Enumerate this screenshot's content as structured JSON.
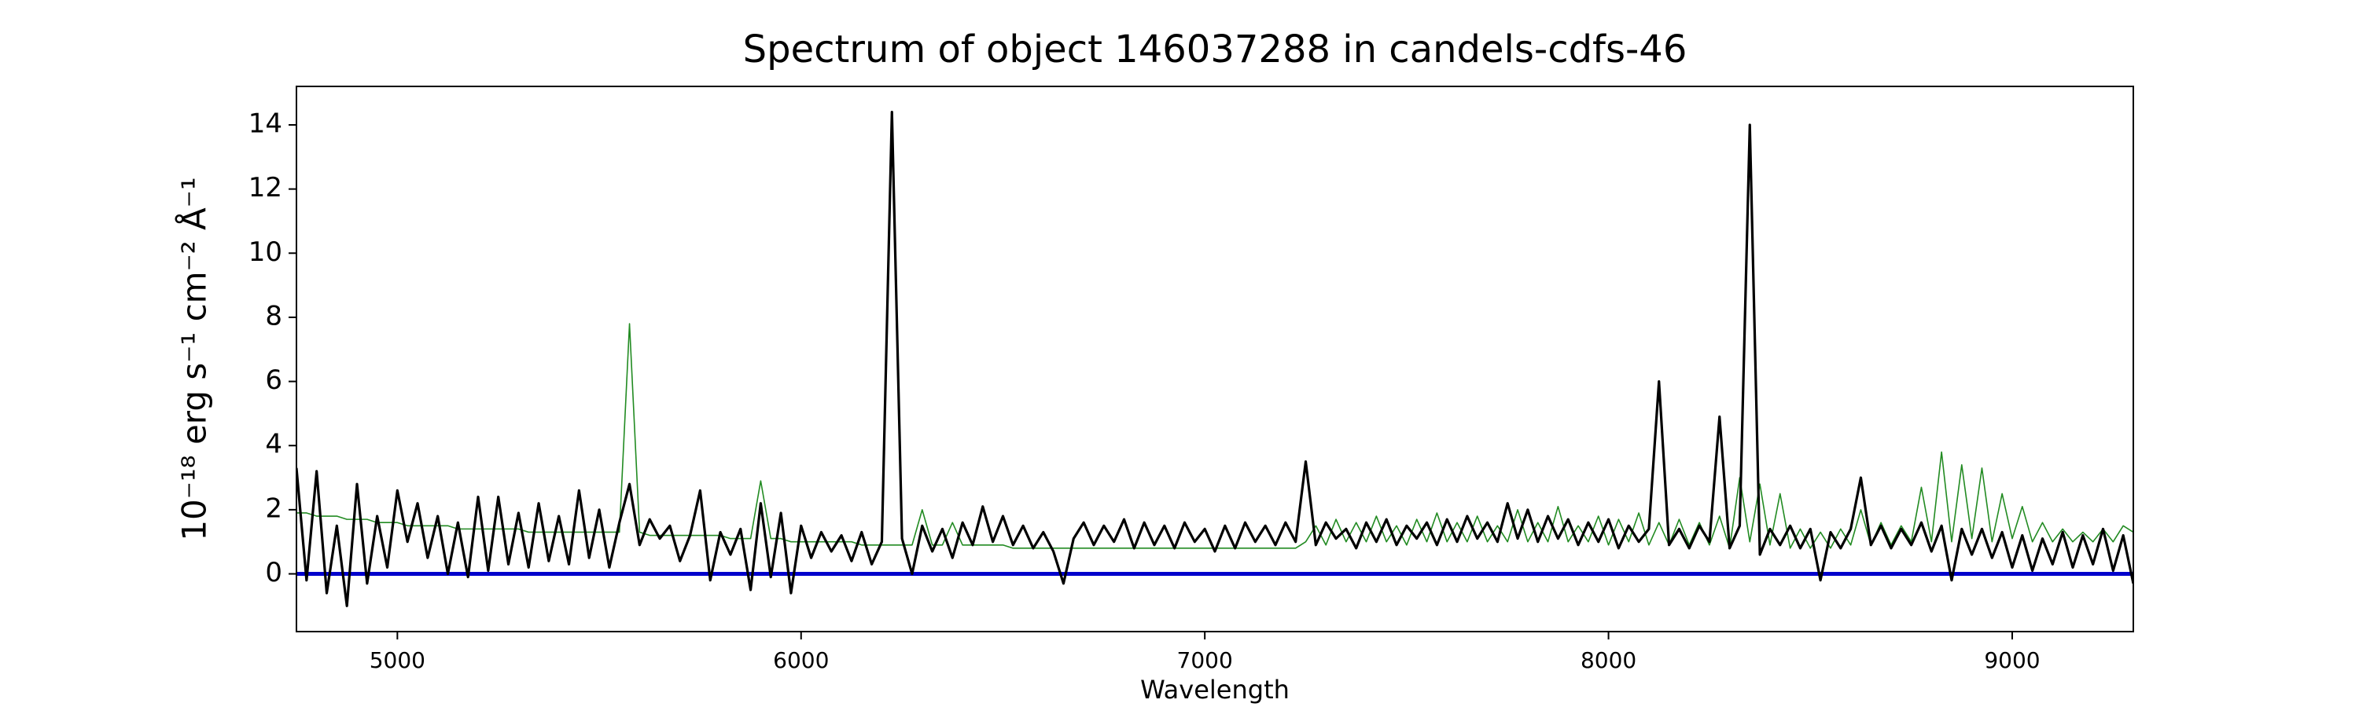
{
  "chart_data": {
    "type": "line",
    "title": "Spectrum of object 146037288 in candels-cdfs-46",
    "xlabel": "Wavelength",
    "ylabel": "10⁻¹⁸ erg s⁻¹ cm⁻² Å⁻¹",
    "xlim": [
      4750,
      9300
    ],
    "xticks": [
      5000,
      6000,
      7000,
      8000,
      9000
    ],
    "ylim": [
      -1.8,
      15.2
    ],
    "yticks": [
      0,
      2,
      4,
      6,
      8,
      10,
      12,
      14
    ],
    "hline": {
      "y": 0,
      "color": "#0000cc"
    },
    "x": [
      4750,
      4775,
      4800,
      4825,
      4850,
      4875,
      4900,
      4925,
      4950,
      4975,
      5000,
      5025,
      5050,
      5075,
      5100,
      5125,
      5150,
      5175,
      5200,
      5225,
      5250,
      5275,
      5300,
      5325,
      5350,
      5375,
      5400,
      5425,
      5450,
      5475,
      5500,
      5525,
      5550,
      5575,
      5600,
      5625,
      5650,
      5675,
      5700,
      5725,
      5750,
      5775,
      5800,
      5825,
      5850,
      5875,
      5900,
      5925,
      5950,
      5975,
      6000,
      6025,
      6050,
      6075,
      6100,
      6125,
      6150,
      6175,
      6200,
      6225,
      6250,
      6275,
      6300,
      6325,
      6350,
      6375,
      6400,
      6425,
      6450,
      6475,
      6500,
      6525,
      6550,
      6575,
      6600,
      6625,
      6650,
      6675,
      6700,
      6725,
      6750,
      6775,
      6800,
      6825,
      6850,
      6875,
      6900,
      6925,
      6950,
      6975,
      7000,
      7025,
      7050,
      7075,
      7100,
      7125,
      7150,
      7175,
      7200,
      7225,
      7250,
      7275,
      7300,
      7325,
      7350,
      7375,
      7400,
      7425,
      7450,
      7475,
      7500,
      7525,
      7550,
      7575,
      7600,
      7625,
      7650,
      7675,
      7700,
      7725,
      7750,
      7775,
      7800,
      7825,
      7850,
      7875,
      7900,
      7925,
      7950,
      7975,
      8000,
      8025,
      8050,
      8075,
      8100,
      8125,
      8150,
      8175,
      8200,
      8225,
      8250,
      8275,
      8300,
      8325,
      8350,
      8375,
      8400,
      8425,
      8450,
      8475,
      8500,
      8525,
      8550,
      8575,
      8600,
      8625,
      8650,
      8675,
      8700,
      8725,
      8750,
      8775,
      8800,
      8825,
      8850,
      8875,
      8900,
      8925,
      8950,
      8975,
      9000,
      9025,
      9050,
      9075,
      9100,
      9125,
      9150,
      9175,
      9200,
      9225,
      9250,
      9275,
      9300
    ],
    "series": [
      {
        "color": "#228b22",
        "width": 1.6,
        "values": [
          1.9,
          1.9,
          1.8,
          1.8,
          1.8,
          1.7,
          1.7,
          1.7,
          1.6,
          1.6,
          1.6,
          1.5,
          1.5,
          1.5,
          1.5,
          1.5,
          1.4,
          1.4,
          1.4,
          1.4,
          1.4,
          1.4,
          1.4,
          1.3,
          1.3,
          1.3,
          1.3,
          1.3,
          1.3,
          1.3,
          1.3,
          1.3,
          1.3,
          7.8,
          1.3,
          1.2,
          1.2,
          1.2,
          1.2,
          1.2,
          1.2,
          1.2,
          1.2,
          1.1,
          1.1,
          1.1,
          2.9,
          1.1,
          1.1,
          1.0,
          1.0,
          1.0,
          1.0,
          1.0,
          1.0,
          1.0,
          0.9,
          0.9,
          0.9,
          0.9,
          0.9,
          0.9,
          2.0,
          0.9,
          0.9,
          1.6,
          0.9,
          0.9,
          0.9,
          0.9,
          0.9,
          0.8,
          0.8,
          0.8,
          0.8,
          0.8,
          0.8,
          0.8,
          0.8,
          0.8,
          0.8,
          0.8,
          0.8,
          0.8,
          0.8,
          0.8,
          0.8,
          0.8,
          0.8,
          0.8,
          0.8,
          0.8,
          0.8,
          0.8,
          0.8,
          0.8,
          0.8,
          0.8,
          0.8,
          0.8,
          1.0,
          1.5,
          0.9,
          1.7,
          1.0,
          1.6,
          1.0,
          1.8,
          1.0,
          1.5,
          0.9,
          1.7,
          1.0,
          1.9,
          1.0,
          1.6,
          1.0,
          1.8,
          1.0,
          1.5,
          1.0,
          2.0,
          1.0,
          1.6,
          1.0,
          2.1,
          1.0,
          1.5,
          1.0,
          1.8,
          0.9,
          1.7,
          1.0,
          1.9,
          0.9,
          1.6,
          0.9,
          1.7,
          0.9,
          1.6,
          0.9,
          1.8,
          0.8,
          3.0,
          1.0,
          2.8,
          0.9,
          2.5,
          0.8,
          1.4,
          0.8,
          1.3,
          0.8,
          1.4,
          0.9,
          2.0,
          0.9,
          1.6,
          0.9,
          1.5,
          1.0,
          2.7,
          1.0,
          3.8,
          1.0,
          3.4,
          1.1,
          3.3,
          1.0,
          2.5,
          1.1,
          2.1,
          1.0,
          1.6,
          1.0,
          1.4,
          1.0,
          1.3,
          1.0,
          1.4,
          1.0,
          1.5,
          1.3
        ]
      },
      {
        "color": "#000000",
        "width": 3.2,
        "values": [
          3.3,
          -0.2,
          3.2,
          -0.6,
          1.5,
          -1.0,
          2.8,
          -0.3,
          1.8,
          0.2,
          2.6,
          1.0,
          2.2,
          0.5,
          1.8,
          0.0,
          1.6,
          -0.1,
          2.4,
          0.1,
          2.4,
          0.3,
          1.9,
          0.2,
          2.2,
          0.4,
          1.8,
          0.3,
          2.6,
          0.5,
          2.0,
          0.2,
          1.6,
          2.8,
          0.9,
          1.7,
          1.1,
          1.5,
          0.4,
          1.2,
          2.6,
          -0.2,
          1.3,
          0.6,
          1.4,
          -0.5,
          2.2,
          -0.1,
          1.9,
          -0.6,
          1.5,
          0.5,
          1.3,
          0.7,
          1.2,
          0.4,
          1.3,
          0.3,
          1.0,
          14.4,
          1.1,
          0.0,
          1.5,
          0.7,
          1.4,
          0.5,
          1.6,
          0.9,
          2.1,
          1.0,
          1.8,
          0.9,
          1.5,
          0.8,
          1.3,
          0.7,
          -0.3,
          1.1,
          1.6,
          0.9,
          1.5,
          1.0,
          1.7,
          0.8,
          1.6,
          0.9,
          1.5,
          0.8,
          1.6,
          1.0,
          1.4,
          0.7,
          1.5,
          0.8,
          1.6,
          1.0,
          1.5,
          0.9,
          1.6,
          1.0,
          3.5,
          0.9,
          1.6,
          1.1,
          1.4,
          0.8,
          1.6,
          1.0,
          1.7,
          0.9,
          1.5,
          1.1,
          1.6,
          0.9,
          1.7,
          1.0,
          1.8,
          1.1,
          1.6,
          1.0,
          2.2,
          1.1,
          2.0,
          1.0,
          1.8,
          1.1,
          1.7,
          0.9,
          1.6,
          1.0,
          1.7,
          0.8,
          1.5,
          1.0,
          1.4,
          6.0,
          0.9,
          1.4,
          0.8,
          1.5,
          1.0,
          4.9,
          0.8,
          1.5,
          14.0,
          0.6,
          1.4,
          0.9,
          1.5,
          0.8,
          1.4,
          -0.2,
          1.3,
          0.8,
          1.4,
          3.0,
          0.9,
          1.5,
          0.8,
          1.4,
          0.9,
          1.6,
          0.7,
          1.5,
          -0.2,
          1.4,
          0.6,
          1.4,
          0.5,
          1.3,
          0.2,
          1.2,
          0.1,
          1.1,
          0.3,
          1.3,
          0.2,
          1.2,
          0.3,
          1.4,
          0.1,
          1.2,
          -0.3
        ]
      }
    ]
  }
}
